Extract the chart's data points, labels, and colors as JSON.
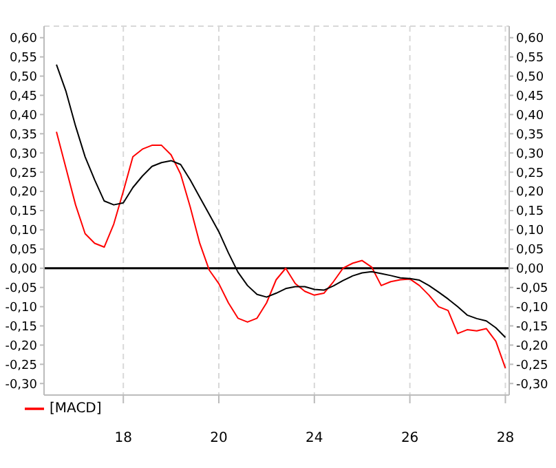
{
  "chart_data": {
    "type": "line",
    "legend": "bottom left",
    "grid": true,
    "line_style": "solid",
    "marker": "none",
    "categories": [
      null,
      null,
      null,
      null,
      null,
      null,
      null,
      null,
      "18",
      null,
      null,
      null,
      null,
      null,
      null,
      null,
      null,
      null,
      "20",
      null,
      null,
      null,
      null,
      null,
      null,
      null,
      null,
      null,
      "24",
      null,
      null,
      null,
      null,
      null,
      null,
      null,
      null,
      null,
      "26",
      null,
      null,
      null,
      null,
      null,
      null,
      null,
      null,
      null,
      "28"
    ],
    "ylim": [
      -0.33,
      0.63
    ],
    "yticks": [
      {
        "value": 0.6,
        "label": "0,60"
      },
      {
        "value": 0.55,
        "label": "0,55"
      },
      {
        "value": 0.5,
        "label": "0,50"
      },
      {
        "value": 0.45,
        "label": "0,45"
      },
      {
        "value": 0.4,
        "label": "0,40"
      },
      {
        "value": 0.35,
        "label": "0,35"
      },
      {
        "value": 0.3,
        "label": "0,30"
      },
      {
        "value": 0.25,
        "label": "0,25"
      },
      {
        "value": 0.2,
        "label": "0,20"
      },
      {
        "value": 0.15,
        "label": "0,15"
      },
      {
        "value": 0.1,
        "label": "0,10"
      },
      {
        "value": 0.05,
        "label": "0,05"
      },
      {
        "value": 0,
        "label": "0,00"
      },
      {
        "value": -0.05,
        "label": "-0,05"
      },
      {
        "value": -0.1,
        "label": "-0,10"
      },
      {
        "value": -0.15,
        "label": "-0,15"
      },
      {
        "value": -0.2,
        "label": "-0,20"
      },
      {
        "value": -0.25,
        "label": "-0,25"
      },
      {
        "value": -0.3,
        "label": "-0,30"
      }
    ],
    "y2lim": [
      -0.33,
      0.63
    ],
    "y2ticks": [
      {
        "value": 0.6,
        "label": "0,60"
      },
      {
        "value": 0.55,
        "label": "0,55"
      },
      {
        "value": 0.5,
        "label": "0,50"
      },
      {
        "value": 0.45,
        "label": "0,45"
      },
      {
        "value": 0.4,
        "label": "0,40"
      },
      {
        "value": 0.35,
        "label": "0,35"
      },
      {
        "value": 0.3,
        "label": "0,30"
      },
      {
        "value": 0.25,
        "label": "0,25"
      },
      {
        "value": 0.2,
        "label": "0,20"
      },
      {
        "value": 0.15,
        "label": "0,15"
      },
      {
        "value": 0.1,
        "label": "0,10"
      },
      {
        "value": 0.05,
        "label": "0,05"
      },
      {
        "value": 0,
        "label": "0,00"
      },
      {
        "value": -0.05,
        "label": "-0,05"
      },
      {
        "value": -0.1,
        "label": "-0,10"
      },
      {
        "value": -0.15,
        "label": "-0,15"
      },
      {
        "value": -0.2,
        "label": "-0,20"
      },
      {
        "value": -0.25,
        "label": "-0,25"
      },
      {
        "value": -0.3,
        "label": "-0,30"
      }
    ],
    "ref_lines": [
      {
        "axis": "y",
        "value": 0,
        "color": "#000000"
      }
    ],
    "series": [
      {
        "name": "[MACD]",
        "color": "#ff0000",
        "values": [
          null,
          0.355,
          0.26,
          0.165,
          0.09,
          0.065,
          0.055,
          0.115,
          0.2,
          0.29,
          0.31,
          0.32,
          0.32,
          0.295,
          0.245,
          0.16,
          0.065,
          -0.005,
          -0.04,
          -0.09,
          -0.13,
          -0.14,
          -0.13,
          -0.09,
          -0.03,
          0,
          -0.04,
          -0.06,
          -0.07,
          -0.065,
          -0.035,
          0,
          0.013,
          0.02,
          0.003,
          -0.045,
          -0.035,
          -0.03,
          -0.028,
          -0.045,
          -0.07,
          -0.1,
          -0.11,
          -0.17,
          -0.16,
          -0.163,
          -0.157,
          -0.19,
          -0.26
        ]
      },
      {
        "color": "#000000",
        "values": [
          null,
          0.53,
          0.46,
          0.37,
          0.29,
          0.23,
          0.175,
          0.165,
          0.17,
          0.21,
          0.24,
          0.265,
          0.275,
          0.28,
          0.27,
          0.23,
          0.185,
          0.14,
          0.095,
          0.04,
          -0.01,
          -0.045,
          -0.068,
          -0.075,
          -0.065,
          -0.053,
          -0.048,
          -0.048,
          -0.055,
          -0.057,
          -0.046,
          -0.032,
          -0.02,
          -0.012,
          -0.009,
          -0.014,
          -0.019,
          -0.025,
          -0.027,
          -0.031,
          -0.045,
          -0.062,
          -0.08,
          -0.1,
          -0.122,
          -0.131,
          -0.137,
          -0.155,
          -0.18
        ]
      }
    ]
  }
}
